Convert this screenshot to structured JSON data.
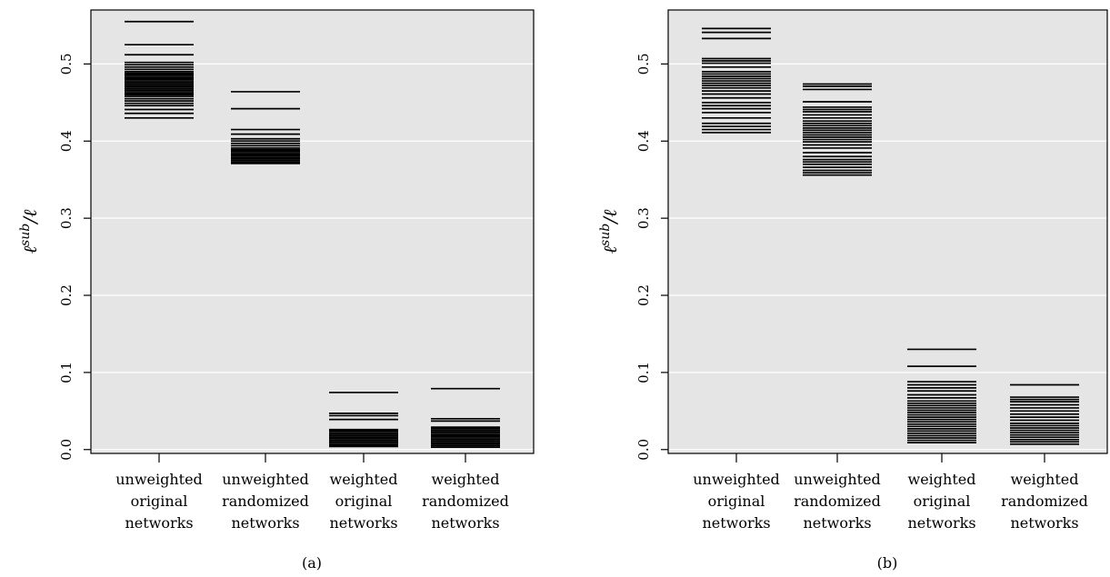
{
  "chart_data": [
    {
      "panel": "(a)",
      "type": "strip",
      "ylabel": "ℓ^sub/ℓ",
      "ylabel_base": "ℓ",
      "ylabel_sup": "sub",
      "ylabel_tail": "/ℓ",
      "ylim": [
        -0.005,
        0.57
      ],
      "yticks": [
        0.0,
        0.1,
        0.2,
        0.3,
        0.4,
        0.5
      ],
      "ytick_labels": [
        "0.0",
        "0.1",
        "0.2",
        "0.3",
        "0.4",
        "0.5"
      ],
      "grid": true,
      "categories": [
        [
          "unweighted",
          "original",
          "networks"
        ],
        [
          "unweighted",
          "randomized",
          "networks"
        ],
        [
          "weighted",
          "original",
          "networks"
        ],
        [
          "weighted",
          "randomized",
          "networks"
        ]
      ],
      "series": [
        {
          "values": [
            0.43,
            0.436,
            0.441,
            0.446,
            0.449,
            0.452,
            0.455,
            0.458,
            0.46,
            0.462,
            0.464,
            0.466,
            0.468,
            0.47,
            0.472,
            0.474,
            0.476,
            0.478,
            0.48,
            0.482,
            0.484,
            0.486,
            0.488,
            0.49,
            0.493,
            0.496,
            0.499,
            0.502,
            0.512,
            0.525,
            0.555
          ]
        },
        {
          "values": [
            0.371,
            0.373,
            0.375,
            0.377,
            0.379,
            0.381,
            0.383,
            0.385,
            0.387,
            0.389,
            0.391,
            0.394,
            0.397,
            0.4,
            0.403,
            0.409,
            0.415,
            0.442,
            0.464
          ]
        },
        {
          "values": [
            0.004,
            0.006,
            0.008,
            0.01,
            0.012,
            0.014,
            0.016,
            0.018,
            0.02,
            0.022,
            0.024,
            0.026,
            0.039,
            0.044,
            0.047,
            0.074
          ]
        },
        {
          "values": [
            0.003,
            0.005,
            0.007,
            0.009,
            0.011,
            0.013,
            0.015,
            0.017,
            0.019,
            0.021,
            0.023,
            0.025,
            0.027,
            0.029,
            0.037,
            0.04,
            0.079
          ]
        }
      ]
    },
    {
      "panel": "(b)",
      "type": "strip",
      "ylabel": "ℓ^sub/ℓ",
      "ylabel_base": "ℓ",
      "ylabel_sup": "sub",
      "ylabel_tail": "/ℓ",
      "ylim": [
        -0.005,
        0.57
      ],
      "yticks": [
        0.0,
        0.1,
        0.2,
        0.3,
        0.4,
        0.5
      ],
      "ytick_labels": [
        "0.0",
        "0.1",
        "0.2",
        "0.3",
        "0.4",
        "0.5"
      ],
      "grid": true,
      "categories": [
        [
          "unweighted",
          "original",
          "networks"
        ],
        [
          "unweighted",
          "randomized",
          "networks"
        ],
        [
          "weighted",
          "original",
          "networks"
        ],
        [
          "weighted",
          "randomized",
          "networks"
        ]
      ],
      "series": [
        {
          "values": [
            0.411,
            0.415,
            0.419,
            0.423,
            0.43,
            0.437,
            0.442,
            0.446,
            0.45,
            0.456,
            0.461,
            0.465,
            0.469,
            0.472,
            0.475,
            0.478,
            0.481,
            0.484,
            0.487,
            0.49,
            0.496,
            0.501,
            0.504,
            0.507,
            0.533,
            0.541,
            0.546
          ]
        },
        {
          "values": [
            0.356,
            0.359,
            0.362,
            0.366,
            0.37,
            0.373,
            0.376,
            0.38,
            0.385,
            0.391,
            0.395,
            0.399,
            0.402,
            0.405,
            0.408,
            0.411,
            0.414,
            0.417,
            0.42,
            0.423,
            0.426,
            0.43,
            0.434,
            0.438,
            0.441,
            0.444,
            0.451,
            0.467,
            0.471,
            0.474
          ]
        },
        {
          "values": [
            0.009,
            0.012,
            0.015,
            0.018,
            0.021,
            0.024,
            0.027,
            0.03,
            0.033,
            0.036,
            0.039,
            0.042,
            0.045,
            0.048,
            0.051,
            0.054,
            0.057,
            0.06,
            0.063,
            0.067,
            0.071,
            0.076,
            0.08,
            0.084,
            0.088,
            0.108,
            0.13
          ]
        },
        {
          "values": [
            0.007,
            0.01,
            0.013,
            0.016,
            0.019,
            0.022,
            0.025,
            0.028,
            0.031,
            0.034,
            0.038,
            0.042,
            0.046,
            0.05,
            0.054,
            0.058,
            0.062,
            0.065,
            0.068,
            0.084
          ]
        }
      ]
    }
  ],
  "colors": {
    "panel_background": "#e5e5e5",
    "grid": "#ffffff",
    "marks": "#000000",
    "axes": "#000000"
  }
}
